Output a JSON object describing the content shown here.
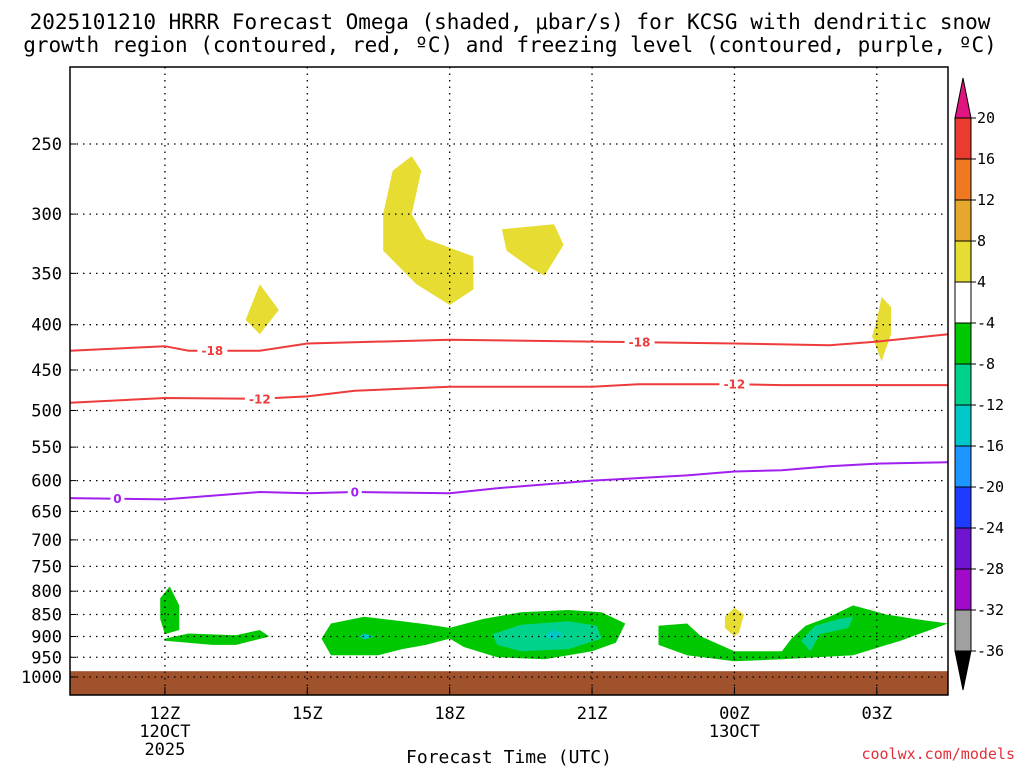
{
  "chart_data": {
    "type": "heatmap",
    "title_line1": "2025101210 HRRR Forecast Omega (shaded, μbar/s) for KCSG with dendritic snow",
    "title_line2": "growth region (contoured, red, ºC) and freezing level (contoured, purple, ºC)",
    "xlabel": "Forecast Time (UTC)",
    "credit": "coolwx.com/models",
    "x_range_hours": [
      10,
      28.5
    ],
    "pressure_levels": [
      250,
      300,
      350,
      400,
      450,
      500,
      550,
      600,
      650,
      700,
      750,
      800,
      850,
      900,
      950,
      1000
    ],
    "pressure_tick_labels": [
      "250",
      "300",
      "350",
      "400",
      "450",
      "500",
      "550",
      "600",
      "650",
      "700",
      "750",
      "800",
      "850",
      "900",
      "950",
      "1000"
    ],
    "x_ticks": [
      {
        "hour": 12,
        "lines": [
          "12Z",
          "12OCT",
          "2025"
        ]
      },
      {
        "hour": 15,
        "lines": [
          "15Z"
        ]
      },
      {
        "hour": 18,
        "lines": [
          "18Z"
        ]
      },
      {
        "hour": 21,
        "lines": [
          "21Z"
        ]
      },
      {
        "hour": 24,
        "lines": [
          "00Z",
          "13OCT"
        ]
      },
      {
        "hour": 27,
        "lines": [
          "03Z"
        ]
      }
    ],
    "colorbar": {
      "labels": [
        "20",
        "16",
        "12",
        "8",
        "4",
        "-4",
        "-8",
        "-12",
        "-16",
        "-20",
        "-24",
        "-28",
        "-32",
        "-36"
      ],
      "colors": [
        "#e0157f",
        "#ea3b30",
        "#f07822",
        "#e6a82c",
        "#e6dc32",
        "#ffffff",
        "#00c800",
        "#00d28c",
        "#00c8c8",
        "#1e96ff",
        "#1e3cff",
        "#6e14d2",
        "#a00ac8",
        "#a0a0a0",
        "#000000"
      ]
    },
    "contours": [
      {
        "name": "dendritic-top",
        "color": "#ee3b3b",
        "label": "-18",
        "points": [
          [
            10,
            428
          ],
          [
            12,
            423
          ],
          [
            12.5,
            428
          ],
          [
            14,
            428
          ],
          [
            15,
            420
          ],
          [
            18,
            416
          ],
          [
            21,
            418
          ],
          [
            24,
            420
          ],
          [
            26,
            422
          ],
          [
            27,
            418
          ],
          [
            28.5,
            410
          ]
        ],
        "label_hours": [
          13,
          22
        ]
      },
      {
        "name": "dendritic-bottom",
        "color": "#ee3b3b",
        "label": "-12",
        "points": [
          [
            10,
            490
          ],
          [
            12,
            484
          ],
          [
            14,
            485
          ],
          [
            15,
            482
          ],
          [
            16,
            475
          ],
          [
            18,
            470
          ],
          [
            21,
            470
          ],
          [
            22,
            467
          ],
          [
            24,
            467
          ],
          [
            25,
            468
          ],
          [
            28.5,
            468
          ]
        ],
        "label_hours": [
          14,
          24
        ]
      },
      {
        "name": "freezing-level",
        "color": "#a020f0",
        "label": "0",
        "points": [
          [
            10,
            628
          ],
          [
            12,
            630
          ],
          [
            14,
            618
          ],
          [
            15,
            620
          ],
          [
            16,
            618
          ],
          [
            18,
            620
          ],
          [
            19,
            612
          ],
          [
            21,
            600
          ],
          [
            23,
            592
          ],
          [
            24,
            586
          ],
          [
            25,
            584
          ],
          [
            26,
            578
          ],
          [
            27,
            574
          ],
          [
            28.5,
            572
          ]
        ],
        "label_hours": [
          11,
          16
        ]
      }
    ],
    "shaded_regions": [
      {
        "name": "upward-4-a",
        "color": "#e6dc32",
        "points": [
          [
            13.7,
            395
          ],
          [
            14,
            360
          ],
          [
            14.4,
            385
          ],
          [
            14,
            410
          ]
        ]
      },
      {
        "name": "upward-4-b",
        "color": "#e6dc32",
        "points": [
          [
            16.6,
            300
          ],
          [
            16.8,
            268
          ],
          [
            17.2,
            258
          ],
          [
            17.4,
            268
          ],
          [
            17.2,
            300
          ],
          [
            17.5,
            320
          ],
          [
            18.5,
            335
          ],
          [
            18.5,
            365
          ],
          [
            18,
            380
          ],
          [
            17.3,
            360
          ],
          [
            16.6,
            330
          ]
        ]
      },
      {
        "name": "upward-4-c",
        "color": "#e6dc32",
        "points": [
          [
            19.1,
            312
          ],
          [
            20.2,
            308
          ],
          [
            20.4,
            325
          ],
          [
            20,
            352
          ],
          [
            19.7,
            345
          ],
          [
            19.2,
            330
          ]
        ]
      },
      {
        "name": "upward-4-d",
        "color": "#e6dc32",
        "points": [
          [
            27,
            395
          ],
          [
            27.1,
            372
          ],
          [
            27.3,
            382
          ],
          [
            27.3,
            410
          ],
          [
            27.1,
            440
          ],
          [
            26.9,
            412
          ]
        ]
      },
      {
        "name": "upward-4-e",
        "color": "#e6dc32",
        "points": [
          [
            23.8,
            855
          ],
          [
            24,
            835
          ],
          [
            24.2,
            850
          ],
          [
            24.1,
            890
          ],
          [
            24,
            900
          ],
          [
            23.8,
            880
          ]
        ]
      },
      {
        "name": "sinking-4-a",
        "color": "#00c800",
        "points": [
          [
            11.9,
            815
          ],
          [
            12.1,
            790
          ],
          [
            12.3,
            830
          ],
          [
            12.3,
            885
          ],
          [
            12,
            895
          ],
          [
            11.9,
            860
          ]
        ]
      },
      {
        "name": "sinking-4-b",
        "color": "#00c800",
        "points": [
          [
            12,
            905
          ],
          [
            12.5,
            893
          ],
          [
            13.5,
            897
          ],
          [
            14,
            885
          ],
          [
            14.2,
            900
          ],
          [
            13.5,
            920
          ],
          [
            13,
            920
          ],
          [
            12,
            910
          ]
        ]
      },
      {
        "name": "sinking-4-c",
        "color": "#00c800",
        "points": [
          [
            15.3,
            905
          ],
          [
            15.5,
            870
          ],
          [
            16.2,
            855
          ],
          [
            17,
            865
          ],
          [
            17.5,
            872
          ],
          [
            18,
            880
          ],
          [
            18.7,
            860
          ],
          [
            19.5,
            845
          ],
          [
            20.5,
            840
          ],
          [
            21.2,
            845
          ],
          [
            21.7,
            870
          ],
          [
            21.5,
            915
          ],
          [
            21,
            935
          ],
          [
            20,
            955
          ],
          [
            19,
            950
          ],
          [
            18.3,
            925
          ],
          [
            18,
            905
          ],
          [
            17.5,
            920
          ],
          [
            17,
            930
          ],
          [
            16.5,
            945
          ],
          [
            15.5,
            945
          ]
        ]
      },
      {
        "name": "sinking-4-d",
        "color": "#00c800",
        "points": [
          [
            22.4,
            875
          ],
          [
            23,
            870
          ],
          [
            23.3,
            900
          ],
          [
            24,
            935
          ],
          [
            25,
            935
          ],
          [
            25.2,
            905
          ],
          [
            25.5,
            875
          ],
          [
            26,
            855
          ],
          [
            26.5,
            830
          ],
          [
            27.2,
            850
          ],
          [
            27.8,
            860
          ],
          [
            28.5,
            870
          ],
          [
            27.5,
            910
          ],
          [
            26.5,
            945
          ],
          [
            25,
            955
          ],
          [
            24,
            960
          ],
          [
            23,
            945
          ],
          [
            22.4,
            920
          ]
        ]
      },
      {
        "name": "sinking-8-a",
        "color": "#00d28c",
        "points": [
          [
            18.9,
            895
          ],
          [
            19.5,
            873
          ],
          [
            20.5,
            865
          ],
          [
            21.1,
            875
          ],
          [
            21.2,
            905
          ],
          [
            20.5,
            930
          ],
          [
            19.5,
            935
          ],
          [
            19,
            920
          ]
        ]
      },
      {
        "name": "sinking-8-b",
        "color": "#00d28c",
        "points": [
          [
            25.4,
            910
          ],
          [
            25.7,
            875
          ],
          [
            26.2,
            860
          ],
          [
            26.5,
            855
          ],
          [
            26.4,
            880
          ],
          [
            25.8,
            895
          ],
          [
            25.6,
            935
          ]
        ]
      },
      {
        "name": "sinking-12-a",
        "color": "#00c8c8",
        "points": [
          [
            20,
            898
          ],
          [
            20.2,
            885
          ],
          [
            20.4,
            895
          ],
          [
            20.2,
            908
          ]
        ]
      },
      {
        "name": "sinking-12-b",
        "color": "#00c8c8",
        "points": [
          [
            16.1,
            900
          ],
          [
            16.2,
            893
          ],
          [
            16.4,
            900
          ],
          [
            16.2,
            907
          ]
        ]
      }
    ]
  }
}
